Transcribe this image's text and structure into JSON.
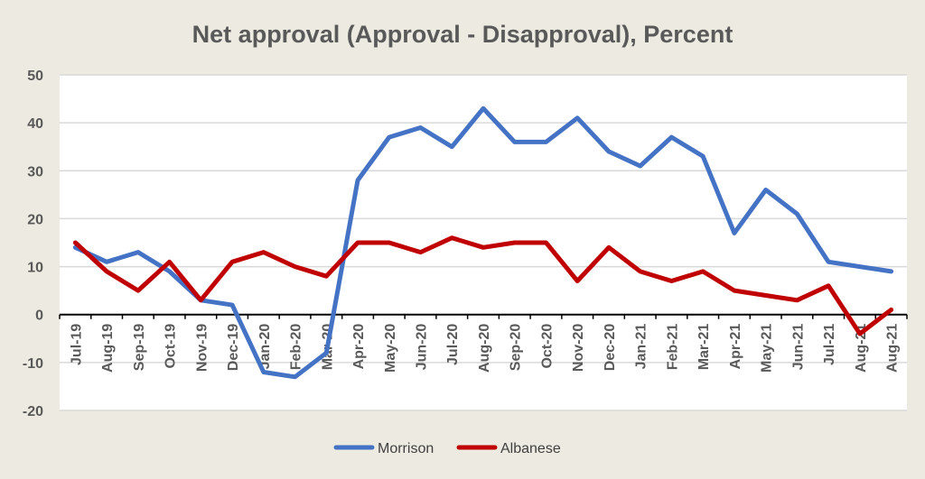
{
  "chart_data": {
    "type": "line",
    "title": "Net approval (Approval - Disapproval), Percent",
    "xlabel": "",
    "ylabel": "",
    "ylim": [
      -20,
      50
    ],
    "yticks": [
      "50",
      "40",
      "30",
      "20",
      "10",
      "0",
      "-10",
      "-20"
    ],
    "grid": true,
    "legend_position": "bottom",
    "categories": [
      "Jul-19",
      "Aug-19",
      "Sep-19",
      "Oct-19",
      "Nov-19",
      "Dec-19",
      "Jan-20",
      "Feb-20",
      "Mar-20",
      "Apr-20",
      "May-20",
      "Jun-20",
      "Jul-20",
      "Aug-20",
      "Sep-20",
      "Oct-20",
      "Nov-20",
      "Dec-20",
      "Jan-21",
      "Feb-21",
      "Mar-21",
      "Apr-21",
      "May-21",
      "Jun-21",
      "Jul-21",
      "Aug-21",
      "Aug-21"
    ],
    "series": [
      {
        "name": "Morrison",
        "color": "#4472c4",
        "values": [
          14,
          11,
          13,
          9,
          3,
          2,
          -12,
          -13,
          -8,
          28,
          37,
          39,
          35,
          43,
          36,
          36,
          41,
          34,
          31,
          37,
          33,
          17,
          26,
          21,
          11,
          10,
          9
        ]
      },
      {
        "name": "Albanese",
        "color": "#c00000",
        "values": [
          15,
          9,
          5,
          11,
          3,
          11,
          13,
          10,
          8,
          15,
          15,
          13,
          16,
          14,
          15,
          15,
          7,
          14,
          9,
          7,
          9,
          5,
          4,
          3,
          6,
          -4,
          1
        ]
      }
    ]
  }
}
